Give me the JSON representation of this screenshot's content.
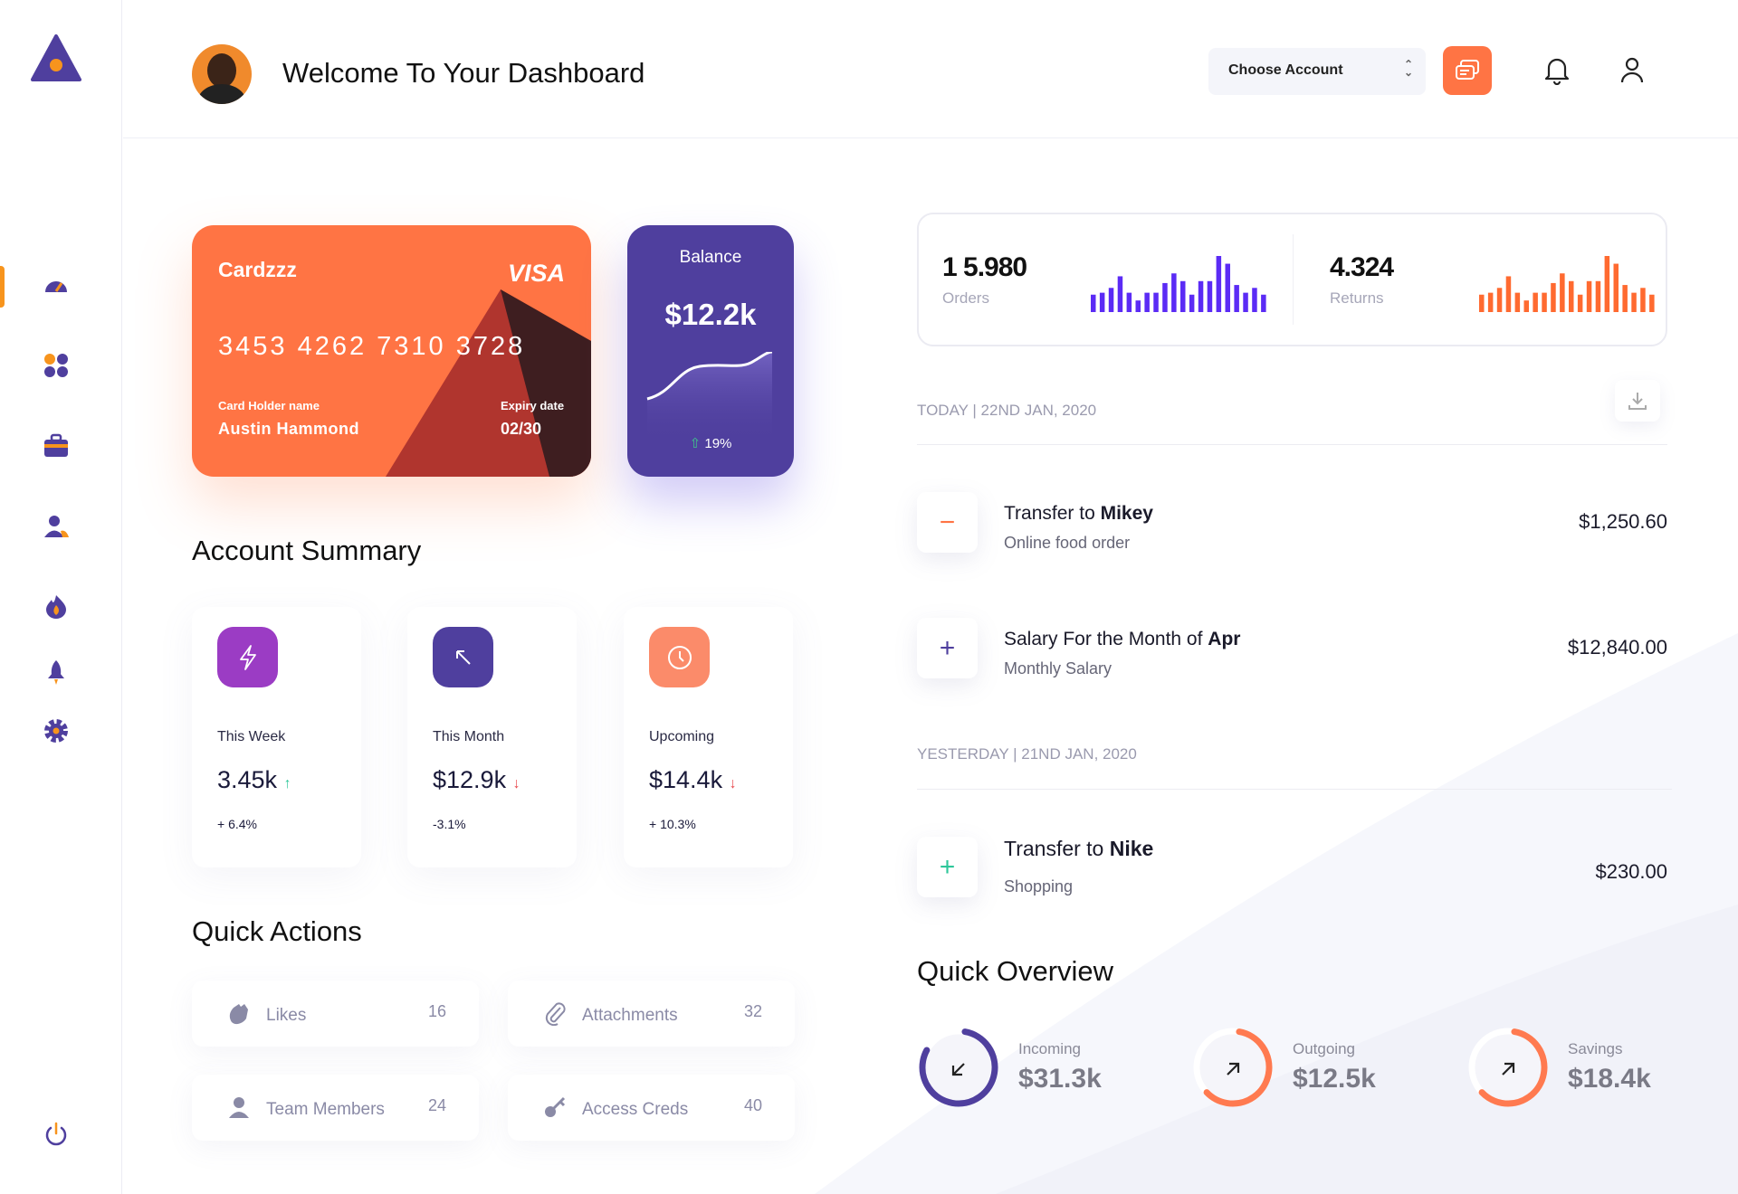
{
  "header": {
    "title": "Welcome To Your Dashboard",
    "account_select": "Choose Account"
  },
  "sidebar": {
    "items": [
      {
        "icon": "speedometer-icon",
        "active": true
      },
      {
        "icon": "grid-icon"
      },
      {
        "icon": "briefcase-icon"
      },
      {
        "icon": "users-icon"
      },
      {
        "icon": "flame-icon"
      },
      {
        "icon": "rocket-icon"
      },
      {
        "icon": "gear-icon"
      }
    ],
    "logout_icon": "power-icon"
  },
  "card": {
    "name": "Cardzzz",
    "brand": "VISA",
    "number": "3453 4262 7310 3728",
    "holder_label": "Card Holder name",
    "holder": "Austin Hammond",
    "expiry_label": "Expiry date",
    "expiry": "02/30"
  },
  "balance": {
    "label": "Balance",
    "value": "$12.2k",
    "change": "19%"
  },
  "summary": {
    "title": "Account Summary",
    "items": [
      {
        "label": "This Week",
        "value": "3.45k",
        "change": "+ 6.4%",
        "trend": "up",
        "color": "#9b3cc4"
      },
      {
        "label": "This Month",
        "value": "$12.9k",
        "change": "-3.1%",
        "trend": "down",
        "color": "#4f3f9e"
      },
      {
        "label": "Upcoming",
        "value": "$14.4k",
        "change": "+ 10.3%",
        "trend": "down",
        "color": "#fb8b6a"
      }
    ]
  },
  "quick_actions": {
    "title": "Quick Actions",
    "items": [
      {
        "label": "Likes",
        "count": "16",
        "icon": "clap-icon"
      },
      {
        "label": "Attachments",
        "count": "32",
        "icon": "paperclip-icon"
      },
      {
        "label": "Team Members",
        "count": "24",
        "icon": "user-icon"
      },
      {
        "label": "Access Creds",
        "count": "40",
        "icon": "key-icon"
      }
    ]
  },
  "stats": {
    "orders": {
      "value": "1 5.980",
      "label": "Orders",
      "color": "#5b2bf5",
      "bars": [
        18,
        20,
        25,
        37,
        20,
        12,
        20,
        20,
        30,
        40,
        32,
        18,
        32,
        32,
        58,
        50,
        28,
        20,
        25,
        18
      ]
    },
    "returns": {
      "value": "4.324",
      "label": "Returns",
      "color": "#ff6a30",
      "bars": [
        18,
        20,
        25,
        37,
        20,
        12,
        20,
        20,
        30,
        40,
        32,
        18,
        32,
        32,
        58,
        50,
        28,
        20,
        25,
        18
      ]
    }
  },
  "transactions": {
    "today_label": "TODAY | 22ND JAN, 2020",
    "yesterday_label": "YESTERDAY | 21ND JAN, 2020",
    "items": [
      {
        "prefix": "Transfer to ",
        "bold": "Mikey",
        "sub": "Online food order",
        "amount": "$1,250.60",
        "sign": "−",
        "color": "#ff7444"
      },
      {
        "prefix": "Salary For the Month of ",
        "bold": "Apr",
        "sub": "Monthly Salary",
        "amount": "$12,840.00",
        "sign": "+",
        "color": "#4f3f9e"
      },
      {
        "prefix": "Transfer to ",
        "bold": "Nike",
        "sub": "Shopping",
        "amount": "$230.00",
        "sign": "+",
        "color": "#2ec79a"
      }
    ]
  },
  "overview": {
    "title": "Quick Overview",
    "items": [
      {
        "label": "Incoming",
        "value": "$31.3k",
        "progress": 0.8,
        "color": "#4f3f9e",
        "icon": "arrow-down-left-icon"
      },
      {
        "label": "Outgoing",
        "value": "$12.5k",
        "progress": 0.6,
        "color": "#ff7a50",
        "icon": "arrow-up-right-icon"
      },
      {
        "label": "Savings",
        "value": "$18.4k",
        "progress": 0.6,
        "color": "#ff7a50",
        "icon": "arrow-up-right-icon"
      }
    ]
  }
}
